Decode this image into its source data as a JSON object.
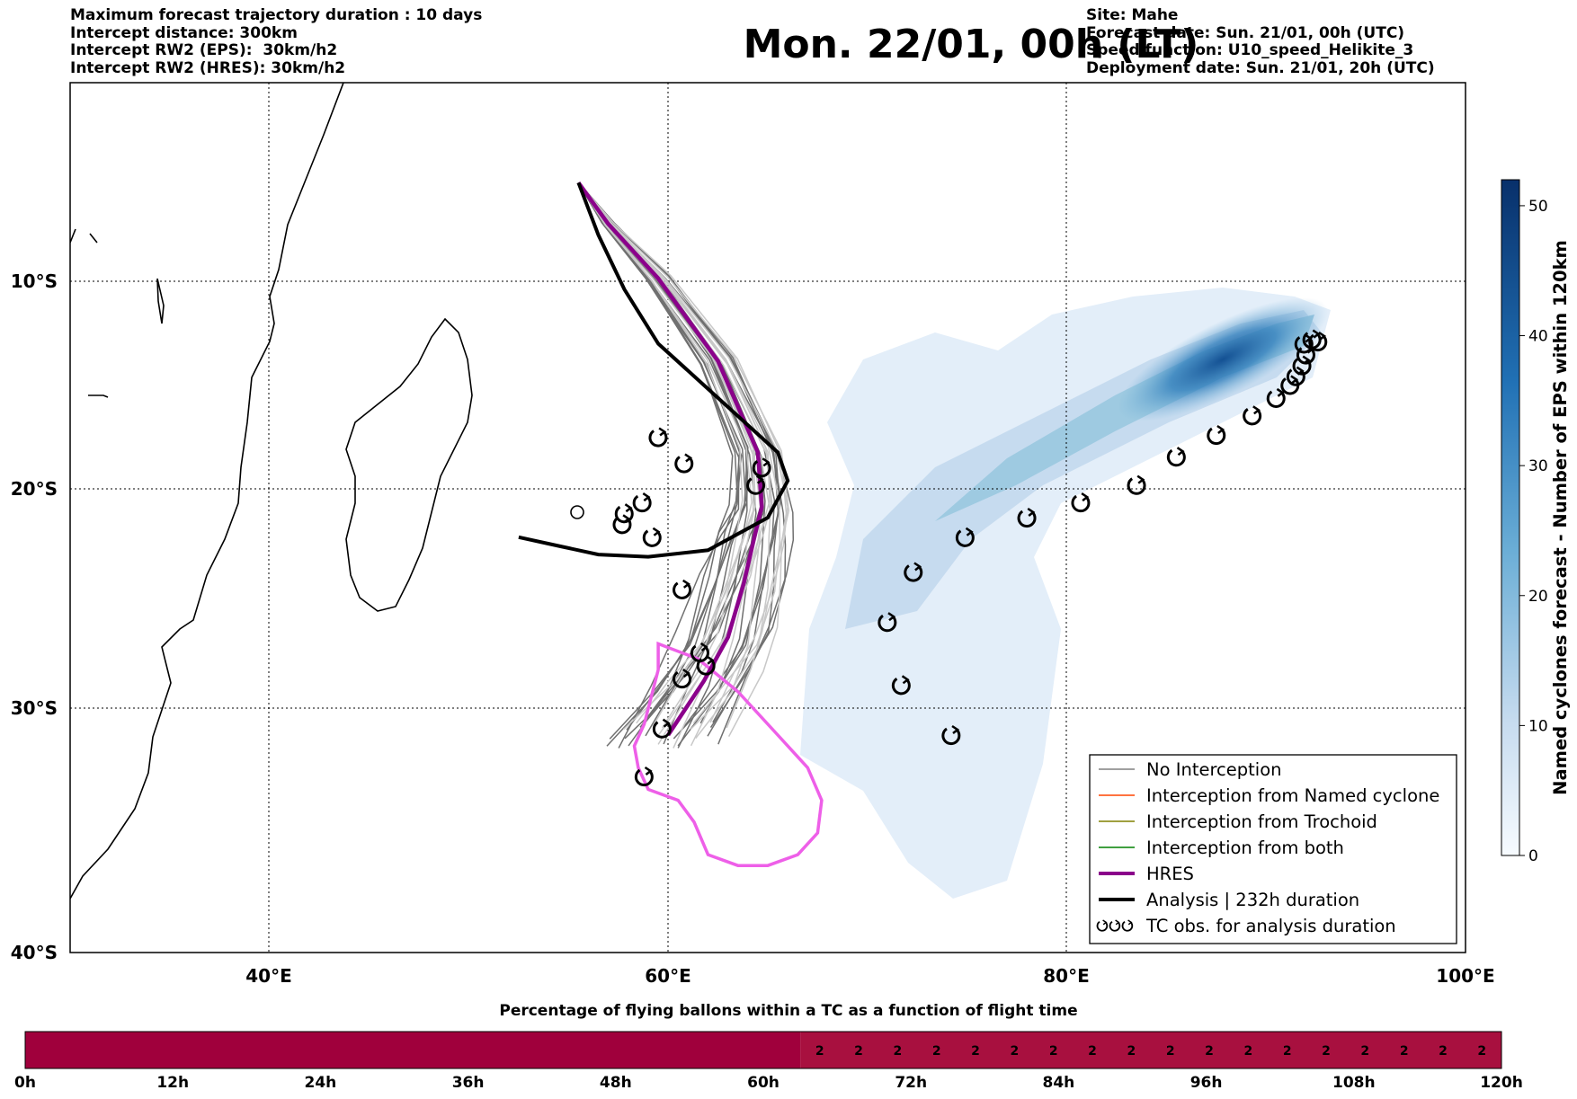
{
  "title": "Mon. 22/01, 00h (LT)",
  "info_left": [
    "Maximum forecast trajectory duration : 10 days",
    "Intercept distance: 300km",
    "Intercept RW2 (EPS):  30km/h2",
    "Intercept RW2 (HRES): 30km/h2"
  ],
  "info_right": [
    "Site: Mahe",
    "Forecast date: Sun. 21/01, 00h (UTC)",
    "Speed function: U10_speed_Helikite_3",
    "Deployment date: Sun. 21/01, 20h (UTC)"
  ],
  "map": {
    "lon_range": [
      30,
      100
    ],
    "lat_range": [
      -40,
      0
    ],
    "lon_ticks": [
      "40°E",
      "60°E",
      "80°E",
      "100°E"
    ],
    "lat_ticks": [
      "10°S",
      "20°S",
      "30°S",
      "40°S"
    ],
    "grid": "dotted"
  },
  "colorbar": {
    "label": "Named cyclones forecast - Number of EPS within 120km",
    "ticks": [
      "0",
      "10",
      "20",
      "30",
      "40",
      "50"
    ],
    "range": [
      0,
      52
    ],
    "colormap": "Blues"
  },
  "legend": {
    "placement": "lower-right",
    "items": [
      {
        "label": "No Interception",
        "color": "#808080"
      },
      {
        "label": "Interception from Named cyclone",
        "color": "#ff4500"
      },
      {
        "label": "Interception from Trochoid",
        "color": "#808000"
      },
      {
        "label": "Interception from both",
        "color": "#008000"
      },
      {
        "label": "HRES",
        "color": "#8b008b"
      },
      {
        "label": "Analysis | 232h duration",
        "color": "#000000"
      },
      {
        "label": "TC obs. for analysis duration",
        "color": "#000000",
        "icon": "cyclone-symbol-icon"
      }
    ]
  },
  "trajectories": {
    "hres": [
      [
        55.5,
        -4.6
      ],
      [
        57,
        -6.5
      ],
      [
        59.5,
        -9
      ],
      [
        62.5,
        -12.8
      ],
      [
        64.5,
        -17
      ],
      [
        64.7,
        -19.5
      ],
      [
        64.3,
        -21
      ],
      [
        63.8,
        -23
      ],
      [
        63,
        -25.5
      ],
      [
        61.8,
        -27.5
      ],
      [
        60,
        -30
      ]
    ],
    "analysis": [
      [
        55.5,
        -4.6
      ],
      [
        56.5,
        -7
      ],
      [
        57.8,
        -9.5
      ],
      [
        59.5,
        -12
      ],
      [
        62.5,
        -14.5
      ],
      [
        65.5,
        -17
      ],
      [
        66,
        -18.3
      ],
      [
        65,
        -20
      ],
      [
        62,
        -21.5
      ],
      [
        59,
        -21.8
      ],
      [
        56.5,
        -21.7
      ],
      [
        54.5,
        -21.3
      ],
      [
        52.5,
        -20.9
      ]
    ],
    "forecast_pink": [
      [
        59.5,
        -25.8
      ],
      [
        61.5,
        -26.5
      ],
      [
        63.5,
        -28
      ],
      [
        65.5,
        -30
      ],
      [
        67,
        -31.5
      ],
      [
        67.7,
        -33
      ],
      [
        67.5,
        -34.5
      ],
      [
        66.5,
        -35.5
      ],
      [
        65,
        -36
      ],
      [
        63.5,
        -36
      ],
      [
        62,
        -35.5
      ],
      [
        61.3,
        -34
      ],
      [
        60.5,
        -33
      ],
      [
        59,
        -32.5
      ],
      [
        58.5,
        -31.5
      ],
      [
        58.3,
        -30.5
      ],
      [
        58.8,
        -29.5
      ],
      [
        59.5,
        -27
      ]
    ]
  },
  "tc_obs": [
    [
      92.3,
      -11.8
    ],
    [
      92.6,
      -11.9
    ],
    [
      91.9,
      -12
    ],
    [
      92,
      -12.5
    ],
    [
      91.8,
      -13
    ],
    [
      91.5,
      -13.5
    ],
    [
      91.2,
      -13.9
    ],
    [
      90.5,
      -14.5
    ],
    [
      89.3,
      -15.3
    ],
    [
      87.5,
      -16.2
    ],
    [
      85.5,
      -17.2
    ],
    [
      83.5,
      -18.5
    ],
    [
      80.7,
      -19.3
    ],
    [
      78,
      -20
    ],
    [
      74.9,
      -20.9
    ],
    [
      72.3,
      -22.5
    ],
    [
      71,
      -24.8
    ],
    [
      71.7,
      -27.7
    ],
    [
      74.2,
      -30
    ],
    [
      60.7,
      -23.3
    ],
    [
      61.6,
      -26.2
    ],
    [
      61.9,
      -26.8
    ],
    [
      60.7,
      -27.4
    ],
    [
      59.7,
      -29.7
    ],
    [
      58.8,
      -31.9
    ],
    [
      59.5,
      -16.3
    ],
    [
      60.8,
      -17.5
    ],
    [
      64.7,
      -17.7
    ],
    [
      64.4,
      -18.5
    ],
    [
      58.7,
      -19.3
    ],
    [
      57.8,
      -19.8
    ],
    [
      57.7,
      -20.3
    ],
    [
      59.2,
      -20.9
    ]
  ],
  "flight_bar": {
    "title": "Percentage of flying ballons within a TC as a function of flight time",
    "x_ticks": [
      "0h",
      "12h",
      "24h",
      "36h",
      "48h",
      "60h",
      "72h",
      "84h",
      "96h",
      "108h",
      "120h"
    ],
    "x_range": [
      0,
      120
    ],
    "values_start_h": 63,
    "values": [
      "2",
      "2",
      "2",
      "2",
      "2",
      "2",
      "2",
      "2",
      "2",
      "2",
      "2",
      "2",
      "2",
      "2",
      "2",
      "2",
      "2",
      "2"
    ],
    "color_low": "#a0003c",
    "color_val": "#a8103f"
  }
}
